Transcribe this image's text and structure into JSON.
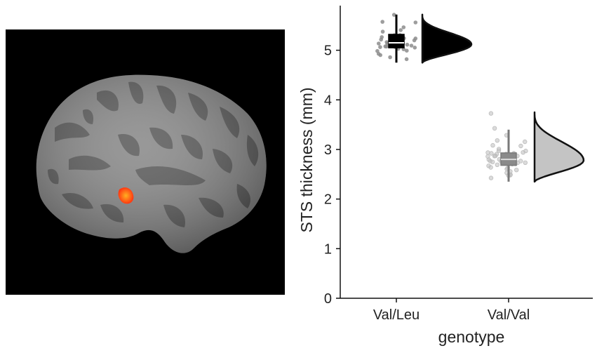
{
  "brain_image": {
    "hemisphere_color": "#8a8a8a",
    "sulci_color": "#5c5c5c",
    "highlight_color": "#ff3a12",
    "background_color": "#000000"
  },
  "chart_data": {
    "type": "raincloud",
    "title": "",
    "xlabel": "genotype",
    "ylabel": "STS  thickness (mm)",
    "ylim": [
      0,
      5.9
    ],
    "yticks": [
      0,
      1,
      2,
      3,
      4,
      5
    ],
    "ytick_labels": [
      "0",
      "1",
      "2",
      "3",
      "4",
      "5"
    ],
    "grid": false,
    "legend": "none",
    "categories": [
      "Val/Leu",
      "Val/Val"
    ],
    "groups": [
      {
        "category": "Val/Leu",
        "fill_color": "#000000",
        "point_color": "#8c8c8c",
        "box": {
          "min": 4.75,
          "q1": 5.05,
          "median": 5.15,
          "q3": 5.32,
          "max": 5.72
        },
        "density": {
          "min": 4.75,
          "max": 5.72,
          "peak": 5.12
        },
        "points": [
          5.12,
          5.05,
          5.2,
          4.95,
          5.3,
          5.15,
          5.1,
          5.25,
          5.0,
          5.18,
          5.35,
          5.08,
          4.9,
          5.22,
          5.14,
          5.45,
          5.6,
          5.7,
          5.02,
          5.28,
          4.85,
          5.16,
          5.1,
          5.05,
          5.4,
          5.12,
          5.2,
          5.08,
          4.98,
          5.25,
          5.55,
          5.15,
          5.1,
          5.3,
          5.06,
          4.8,
          5.18,
          5.12,
          5.22,
          5.0
        ]
      },
      {
        "category": "Val/Val",
        "fill_color": "#c4c4c4",
        "point_color": "#bdbdbd",
        "box": {
          "min": 2.35,
          "q1": 2.68,
          "median": 2.8,
          "q3": 2.93,
          "max": 3.4
        },
        "density": {
          "min": 2.35,
          "max": 3.75,
          "peak": 2.78
        },
        "points": [
          2.8,
          2.75,
          2.9,
          2.6,
          3.0,
          2.85,
          2.7,
          2.95,
          2.55,
          2.82,
          3.1,
          2.72,
          2.65,
          2.88,
          2.78,
          3.2,
          3.4,
          3.7,
          2.5,
          2.92,
          2.45,
          2.8,
          2.76,
          2.68,
          3.05,
          2.84,
          2.9,
          2.7,
          2.62,
          2.95,
          3.3,
          2.8,
          2.74,
          3.0,
          2.66,
          2.4,
          2.86,
          2.8,
          2.9,
          2.58,
          2.83,
          2.77,
          2.71,
          2.98,
          2.63,
          3.15,
          2.87,
          2.79,
          2.52,
          2.93
        ]
      }
    ]
  }
}
